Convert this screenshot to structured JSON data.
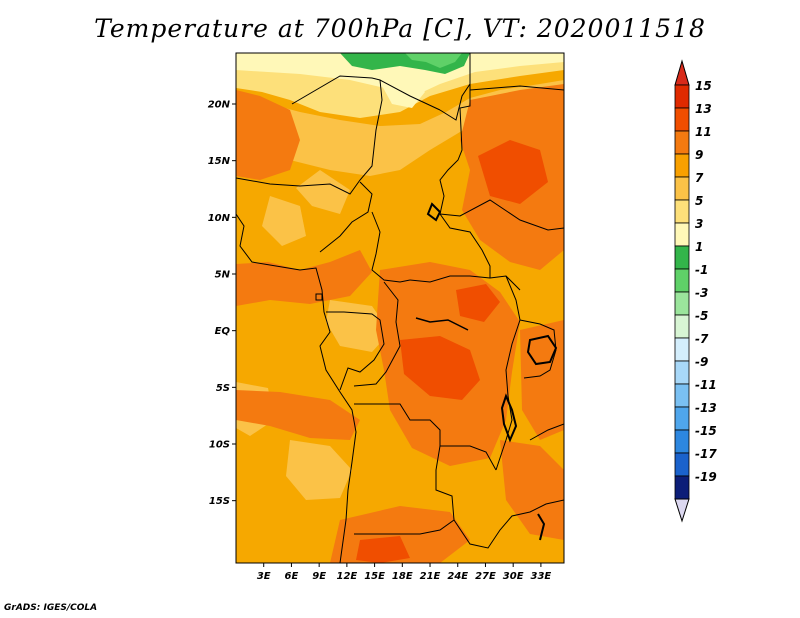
{
  "title": "Temperature at 700hPa [C], VT: 2020011518",
  "credit": "GrADS: IGES/COLA",
  "map": {
    "lat_range": [
      -20.5,
      24.5
    ],
    "lon_range": [
      0,
      35.5
    ],
    "y_ticks": [
      {
        "lat": 20,
        "label": "20N"
      },
      {
        "lat": 15,
        "label": "15N"
      },
      {
        "lat": 10,
        "label": "10N"
      },
      {
        "lat": 5,
        "label": "5N"
      },
      {
        "lat": 0,
        "label": "EQ"
      },
      {
        "lat": -5,
        "label": "5S"
      },
      {
        "lat": -10,
        "label": "10S"
      },
      {
        "lat": -15,
        "label": "15S"
      }
    ],
    "x_ticks": [
      {
        "lon": 3,
        "label": "3E"
      },
      {
        "lon": 6,
        "label": "6E"
      },
      {
        "lon": 9,
        "label": "9E"
      },
      {
        "lon": 12,
        "label": "12E"
      },
      {
        "lon": 15,
        "label": "15E"
      },
      {
        "lon": 18,
        "label": "18E"
      },
      {
        "lon": 21,
        "label": "21E"
      },
      {
        "lon": 24,
        "label": "24E"
      },
      {
        "lon": 27,
        "label": "27E"
      },
      {
        "lon": 30,
        "label": "30E"
      },
      {
        "lon": 33,
        "label": "33E"
      }
    ],
    "background_color": "#f6a800"
  },
  "colorbar": {
    "levels": [
      {
        "label": "15",
        "color": "#e02a00"
      },
      {
        "label": "13",
        "color": "#f04e00"
      },
      {
        "label": "11",
        "color": "#f47a10"
      },
      {
        "label": "9",
        "color": "#f8a000"
      },
      {
        "label": "7",
        "color": "#fbc247"
      },
      {
        "label": "5",
        "color": "#fde07a"
      },
      {
        "label": "3",
        "color": "#fff8b8"
      },
      {
        "label": "1",
        "color": "#33b54a"
      },
      {
        "label": "-1",
        "color": "#5fd168"
      },
      {
        "label": "-3",
        "color": "#9be59c"
      },
      {
        "label": "-5",
        "color": "#d8f5d4"
      },
      {
        "label": "-7",
        "color": "#d4eefc"
      },
      {
        "label": "-9",
        "color": "#a8d8f8"
      },
      {
        "label": "-11",
        "color": "#7ac0f2"
      },
      {
        "label": "-13",
        "color": "#4fa6ec"
      },
      {
        "label": "-15",
        "color": "#2d87e0"
      },
      {
        "label": "-17",
        "color": "#1a62cc"
      },
      {
        "label": "-19",
        "color": "#1240a8"
      }
    ],
    "extend_top_color": "#d82a1a",
    "bottom_color": "#0c1e78",
    "extend_bottom_color": "#dcd8f0"
  }
}
